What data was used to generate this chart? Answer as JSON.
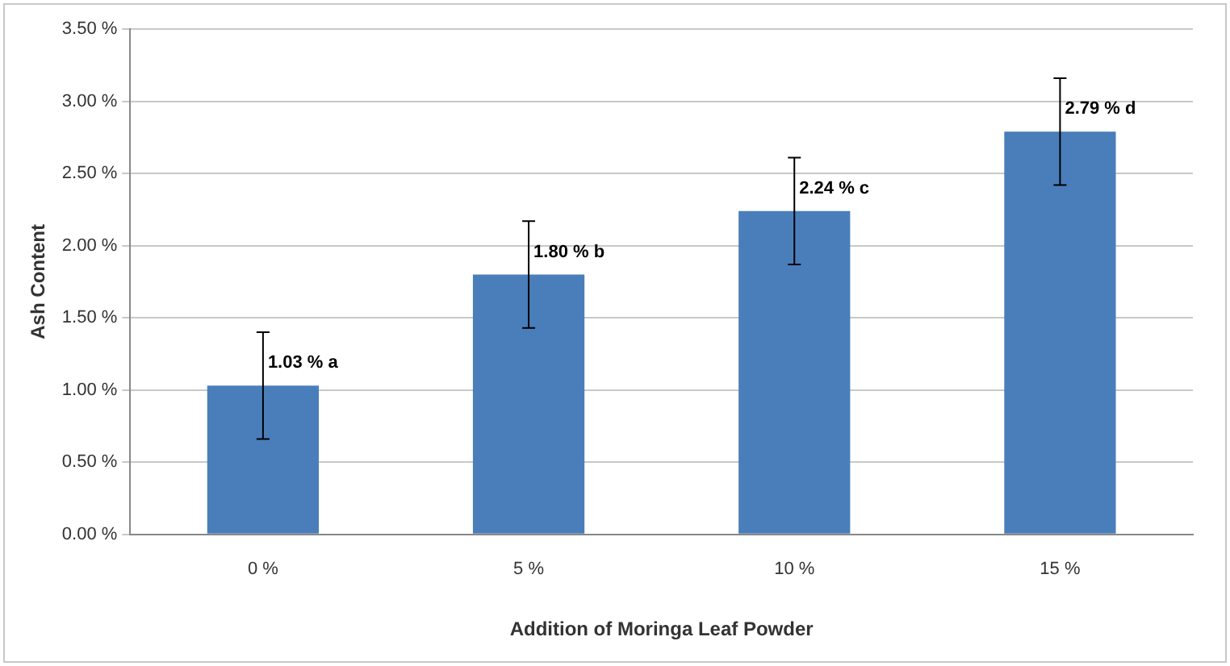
{
  "chart_data": {
    "type": "bar",
    "xlabel": "Addition of Moringa Leaf Powder",
    "ylabel": "Ash Content",
    "categories": [
      "0 %",
      "5 %",
      "10 %",
      "15 %"
    ],
    "values": [
      1.03,
      1.8,
      2.24,
      2.79
    ],
    "errors": [
      0.37,
      0.37,
      0.37,
      0.37
    ],
    "value_labels": [
      "1.03 % a",
      "1.80 % b",
      "2.24 % c",
      "2.79 % d"
    ],
    "color": "#4a7ebb",
    "ylim": [
      0,
      3.5
    ],
    "yticks": [
      {
        "value": 0,
        "label": "0.00 %"
      },
      {
        "value": 0.5,
        "label": "0.50 %"
      },
      {
        "value": 1,
        "label": "1.00 %"
      },
      {
        "value": 1.5,
        "label": "1.50 %"
      },
      {
        "value": 2,
        "label": "2.00 %"
      },
      {
        "value": 2.5,
        "label": "2.50 %"
      },
      {
        "value": 3,
        "label": "3.00 %"
      },
      {
        "value": 3.5,
        "label": "3.50 %"
      }
    ],
    "grid": "y",
    "legend": false
  }
}
